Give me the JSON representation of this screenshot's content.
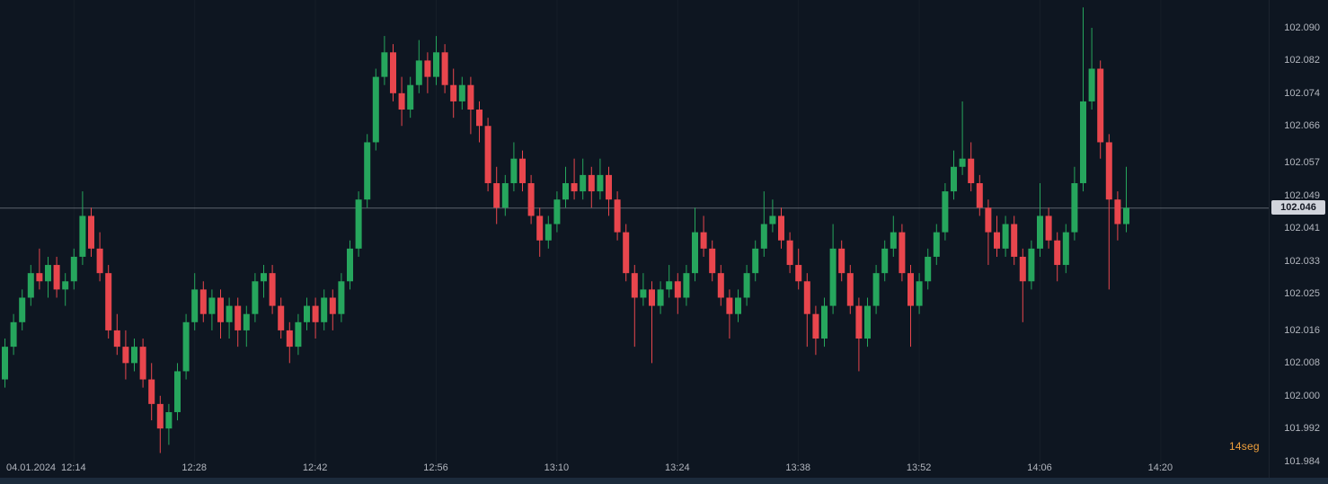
{
  "colors": {
    "background": "#0e1621",
    "up": "#26a65d",
    "down": "#e8464d",
    "axis_text": "#b2b6be",
    "countdown": "#f0a03c",
    "price_tag_bg": "#d1d4dc",
    "price_tag_text": "#131722",
    "price_line": "#9aa0aa",
    "grid": "rgba(255,255,255,0.035)",
    "bottom_bar": "#1c2b3c"
  },
  "chart_data": {
    "type": "candlestick",
    "interval": "1m",
    "start_time": "12:06",
    "date_label": "04.01.2024",
    "current_price": 102.046,
    "current_price_label": "102.046",
    "countdown": {
      "value": "14",
      "unit": "seg"
    },
    "ylim": [
      101.9815,
      102.0968
    ],
    "y_ticks": [
      "102.090",
      "102.082",
      "102.074",
      "102.066",
      "102.057",
      "102.049",
      "102.041",
      "102.033",
      "102.025",
      "102.016",
      "102.008",
      "102.000",
      "101.992",
      "101.984"
    ],
    "x_ticks": [
      {
        "label": "12:14",
        "t": 8
      },
      {
        "label": "12:28",
        "t": 22
      },
      {
        "label": "12:42",
        "t": 36
      },
      {
        "label": "12:56",
        "t": 50
      },
      {
        "label": "13:10",
        "t": 64
      },
      {
        "label": "13:24",
        "t": 78
      },
      {
        "label": "13:38",
        "t": 92
      },
      {
        "label": "13:52",
        "t": 106
      },
      {
        "label": "14:06",
        "t": 120
      },
      {
        "label": "14:20",
        "t": 134
      }
    ],
    "candles": [
      [
        102.004,
        102.014,
        102.002,
        102.012
      ],
      [
        102.012,
        102.02,
        102.01,
        102.018
      ],
      [
        102.018,
        102.026,
        102.016,
        102.024
      ],
      [
        102.024,
        102.032,
        102.022,
        102.03
      ],
      [
        102.03,
        102.036,
        102.026,
        102.028
      ],
      [
        102.028,
        102.034,
        102.024,
        102.032
      ],
      [
        102.032,
        102.034,
        102.024,
        102.026
      ],
      [
        102.026,
        102.03,
        102.022,
        102.028
      ],
      [
        102.028,
        102.036,
        102.026,
        102.034
      ],
      [
        102.034,
        102.05,
        102.032,
        102.044
      ],
      [
        102.044,
        102.046,
        102.034,
        102.036
      ],
      [
        102.036,
        102.04,
        102.028,
        102.03
      ],
      [
        102.03,
        102.032,
        102.014,
        102.016
      ],
      [
        102.016,
        102.02,
        102.01,
        102.012
      ],
      [
        102.012,
        102.016,
        102.004,
        102.008
      ],
      [
        102.008,
        102.014,
        102.006,
        102.012
      ],
      [
        102.012,
        102.014,
        102.002,
        102.004
      ],
      [
        102.004,
        102.008,
        101.994,
        101.998
      ],
      [
        101.998,
        102.0,
        101.986,
        101.992
      ],
      [
        101.992,
        101.998,
        101.988,
        101.996
      ],
      [
        101.996,
        102.008,
        101.994,
        102.006
      ],
      [
        102.006,
        102.02,
        102.004,
        102.018
      ],
      [
        102.018,
        102.03,
        102.016,
        102.026
      ],
      [
        102.026,
        102.028,
        102.018,
        102.02
      ],
      [
        102.02,
        102.026,
        102.016,
        102.024
      ],
      [
        102.024,
        102.026,
        102.014,
        102.018
      ],
      [
        102.018,
        102.024,
        102.014,
        102.022
      ],
      [
        102.022,
        102.024,
        102.012,
        102.016
      ],
      [
        102.016,
        102.022,
        102.012,
        102.02
      ],
      [
        102.02,
        102.03,
        102.018,
        102.028
      ],
      [
        102.028,
        102.032,
        102.024,
        102.03
      ],
      [
        102.03,
        102.032,
        102.02,
        102.022
      ],
      [
        102.022,
        102.024,
        102.014,
        102.016
      ],
      [
        102.016,
        102.018,
        102.008,
        102.012
      ],
      [
        102.012,
        102.02,
        102.01,
        102.018
      ],
      [
        102.018,
        102.024,
        102.016,
        102.022
      ],
      [
        102.022,
        102.024,
        102.014,
        102.018
      ],
      [
        102.018,
        102.026,
        102.016,
        102.024
      ],
      [
        102.024,
        102.026,
        102.016,
        102.02
      ],
      [
        102.02,
        102.03,
        102.018,
        102.028
      ],
      [
        102.028,
        102.038,
        102.026,
        102.036
      ],
      [
        102.036,
        102.05,
        102.034,
        102.048
      ],
      [
        102.048,
        102.064,
        102.046,
        102.062
      ],
      [
        102.062,
        102.08,
        102.06,
        102.078
      ],
      [
        102.078,
        102.088,
        102.076,
        102.084
      ],
      [
        102.084,
        102.086,
        102.072,
        102.074
      ],
      [
        102.074,
        102.078,
        102.066,
        102.07
      ],
      [
        102.07,
        102.078,
        102.068,
        102.076
      ],
      [
        102.076,
        102.087,
        102.074,
        102.082
      ],
      [
        102.082,
        102.084,
        102.074,
        102.078
      ],
      [
        102.078,
        102.088,
        102.076,
        102.084
      ],
      [
        102.084,
        102.086,
        102.074,
        102.076
      ],
      [
        102.076,
        102.08,
        102.068,
        102.072
      ],
      [
        102.072,
        102.078,
        102.07,
        102.076
      ],
      [
        102.076,
        102.078,
        102.064,
        102.07
      ],
      [
        102.07,
        102.072,
        102.062,
        102.066
      ],
      [
        102.066,
        102.068,
        102.05,
        102.052
      ],
      [
        102.052,
        102.056,
        102.042,
        102.046
      ],
      [
        102.046,
        102.054,
        102.044,
        102.052
      ],
      [
        102.052,
        102.062,
        102.05,
        102.058
      ],
      [
        102.058,
        102.06,
        102.05,
        102.052
      ],
      [
        102.052,
        102.054,
        102.042,
        102.044
      ],
      [
        102.044,
        102.046,
        102.034,
        102.038
      ],
      [
        102.038,
        102.044,
        102.036,
        102.042
      ],
      [
        102.042,
        102.05,
        102.04,
        102.048
      ],
      [
        102.048,
        102.056,
        102.046,
        102.052
      ],
      [
        102.052,
        102.058,
        102.048,
        102.05
      ],
      [
        102.05,
        102.058,
        102.048,
        102.054
      ],
      [
        102.054,
        102.056,
        102.046,
        102.05
      ],
      [
        102.05,
        102.058,
        102.048,
        102.054
      ],
      [
        102.054,
        102.056,
        102.044,
        102.048
      ],
      [
        102.048,
        102.05,
        102.038,
        102.04
      ],
      [
        102.04,
        102.042,
        102.028,
        102.03
      ],
      [
        102.03,
        102.032,
        102.012,
        102.024
      ],
      [
        102.024,
        102.03,
        102.022,
        102.026
      ],
      [
        102.026,
        102.028,
        102.008,
        102.022
      ],
      [
        102.022,
        102.028,
        102.02,
        102.026
      ],
      [
        102.026,
        102.032,
        102.024,
        102.028
      ],
      [
        102.028,
        102.03,
        102.02,
        102.024
      ],
      [
        102.024,
        102.032,
        102.022,
        102.03
      ],
      [
        102.03,
        102.046,
        102.028,
        102.04
      ],
      [
        102.04,
        102.044,
        102.034,
        102.036
      ],
      [
        102.036,
        102.038,
        102.028,
        102.03
      ],
      [
        102.03,
        102.032,
        102.022,
        102.024
      ],
      [
        102.024,
        102.026,
        102.014,
        102.02
      ],
      [
        102.02,
        102.026,
        102.018,
        102.024
      ],
      [
        102.024,
        102.032,
        102.022,
        102.03
      ],
      [
        102.03,
        102.038,
        102.028,
        102.036
      ],
      [
        102.036,
        102.05,
        102.034,
        102.042
      ],
      [
        102.042,
        102.048,
        102.04,
        102.044
      ],
      [
        102.044,
        102.046,
        102.036,
        102.038
      ],
      [
        102.038,
        102.04,
        102.03,
        102.032
      ],
      [
        102.032,
        102.036,
        102.026,
        102.028
      ],
      [
        102.028,
        102.03,
        102.012,
        102.02
      ],
      [
        102.02,
        102.022,
        102.01,
        102.014
      ],
      [
        102.014,
        102.024,
        102.012,
        102.022
      ],
      [
        102.022,
        102.042,
        102.02,
        102.036
      ],
      [
        102.036,
        102.038,
        102.028,
        102.03
      ],
      [
        102.03,
        102.032,
        102.02,
        102.022
      ],
      [
        102.022,
        102.024,
        102.006,
        102.014
      ],
      [
        102.014,
        102.024,
        102.012,
        102.022
      ],
      [
        102.022,
        102.032,
        102.02,
        102.03
      ],
      [
        102.03,
        102.038,
        102.028,
        102.036
      ],
      [
        102.036,
        102.044,
        102.034,
        102.04
      ],
      [
        102.04,
        102.042,
        102.028,
        102.03
      ],
      [
        102.03,
        102.032,
        102.012,
        102.022
      ],
      [
        102.022,
        102.03,
        102.02,
        102.028
      ],
      [
        102.028,
        102.036,
        102.026,
        102.034
      ],
      [
        102.034,
        102.042,
        102.032,
        102.04
      ],
      [
        102.04,
        102.052,
        102.038,
        102.05
      ],
      [
        102.05,
        102.06,
        102.048,
        102.056
      ],
      [
        102.056,
        102.072,
        102.054,
        102.058
      ],
      [
        102.058,
        102.062,
        102.05,
        102.052
      ],
      [
        102.052,
        102.054,
        102.044,
        102.046
      ],
      [
        102.046,
        102.048,
        102.032,
        102.04
      ],
      [
        102.04,
        102.044,
        102.034,
        102.036
      ],
      [
        102.036,
        102.044,
        102.034,
        102.042
      ],
      [
        102.042,
        102.044,
        102.032,
        102.034
      ],
      [
        102.034,
        102.036,
        102.018,
        102.028
      ],
      [
        102.028,
        102.038,
        102.026,
        102.036
      ],
      [
        102.036,
        102.052,
        102.034,
        102.044
      ],
      [
        102.044,
        102.046,
        102.036,
        102.038
      ],
      [
        102.038,
        102.04,
        102.028,
        102.032
      ],
      [
        102.032,
        102.042,
        102.03,
        102.04
      ],
      [
        102.04,
        102.056,
        102.038,
        102.052
      ],
      [
        102.052,
        102.095,
        102.05,
        102.072
      ],
      [
        102.072,
        102.09,
        102.07,
        102.08
      ],
      [
        102.08,
        102.082,
        102.058,
        102.062
      ],
      [
        102.062,
        102.064,
        102.026,
        102.048
      ],
      [
        102.048,
        102.05,
        102.038,
        102.042
      ],
      [
        102.042,
        102.056,
        102.04,
        102.046
      ]
    ]
  }
}
